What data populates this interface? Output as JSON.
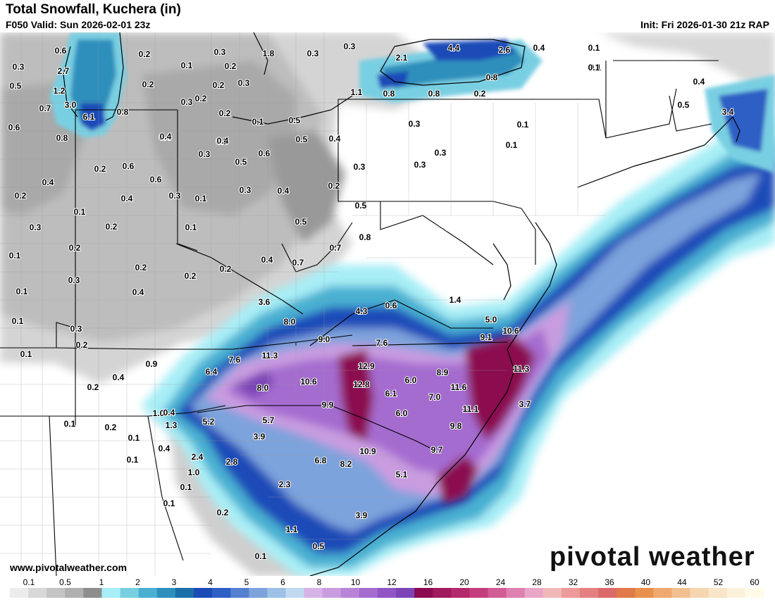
{
  "header": {
    "title": "Total Snowfall, Kuchera (in)",
    "valid": "F050 Valid: Sun 2026-02-01 23z",
    "init": "Init: Fri 2026-01-30 21z RAP"
  },
  "branding": {
    "logo_text": "pivotal weather",
    "website": "www.pivotalweather.com"
  },
  "legend": {
    "ticks": [
      "0.1",
      "0.5",
      "1",
      "2",
      "3",
      "4",
      "5",
      "6",
      "8",
      "10",
      "12",
      "16",
      "20",
      "24",
      "28",
      "32",
      "36",
      "40",
      "44",
      "52",
      "60"
    ],
    "colors": [
      "#ececec",
      "#d8d8d8",
      "#c4c4c4",
      "#b0b0b0",
      "#8e8e8e",
      "#a8eef6",
      "#79cfe2",
      "#4ab0d2",
      "#2e8fbc",
      "#1b6fa8",
      "#1c4bb8",
      "#2d5fc4",
      "#5380d0",
      "#7da3dc",
      "#9dc0e6",
      "#bfd9f0",
      "#d6b3e6",
      "#c99ce0",
      "#b884d8",
      "#a56cd0",
      "#9256c4",
      "#7c44b6",
      "#8b0a50",
      "#a01a5e",
      "#b4286c",
      "#c43e7e",
      "#d25c96",
      "#de80b0",
      "#e9a6c6",
      "#f0b8b8",
      "#ec9a9a",
      "#e48080",
      "#dc6a6a",
      "#e07a4a",
      "#e8904c",
      "#efa870",
      "#f2c090",
      "#f6d6b0",
      "#f9e6c8",
      "#fcf2dc",
      "#fffbe8"
    ]
  },
  "map_labels": [
    {
      "text": "0.6"
    },
    {
      "text": "0.3"
    },
    {
      "text": "2.7"
    },
    {
      "text": "0.5"
    },
    {
      "text": "1.2"
    },
    {
      "text": "0.7"
    },
    {
      "text": "3.0"
    },
    {
      "text": "6.1"
    },
    {
      "text": "0.6"
    },
    {
      "text": "0.8"
    },
    {
      "text": "0.2"
    },
    {
      "text": "0.1"
    },
    {
      "text": "0.2"
    },
    {
      "text": "0.3"
    },
    {
      "text": "0.2"
    },
    {
      "text": "0.2"
    },
    {
      "text": "0.8"
    },
    {
      "text": "0.3"
    },
    {
      "text": "1.8"
    },
    {
      "text": "0.3"
    },
    {
      "text": "0.3"
    },
    {
      "text": "2.1"
    },
    {
      "text": "4.4"
    },
    {
      "text": "2.6"
    },
    {
      "text": "0.4"
    },
    {
      "text": "0.1"
    },
    {
      "text": "0.1"
    },
    {
      "text": "0.8"
    },
    {
      "text": "1.1"
    },
    {
      "text": "0.8"
    },
    {
      "text": "0.5"
    },
    {
      "text": "0.2"
    },
    {
      "text": "0.8"
    },
    {
      "text": "0.3"
    },
    {
      "text": "0.2"
    },
    {
      "text": "0.4"
    },
    {
      "text": "0.5"
    },
    {
      "text": "0.5"
    },
    {
      "text": "0.4"
    },
    {
      "text": "0.3"
    },
    {
      "text": "0.1"
    },
    {
      "text": "0.1"
    },
    {
      "text": "0.1"
    },
    {
      "text": "0.2"
    },
    {
      "text": "0.4"
    },
    {
      "text": "0.4"
    },
    {
      "text": "0.5"
    },
    {
      "text": "0.6"
    },
    {
      "text": "0.3"
    },
    {
      "text": "0.2"
    },
    {
      "text": "0.6"
    },
    {
      "text": "0.4"
    },
    {
      "text": "0.2"
    },
    {
      "text": "0.6"
    },
    {
      "text": "0.3"
    },
    {
      "text": "0.4"
    },
    {
      "text": "0.3"
    },
    {
      "text": "0.1"
    },
    {
      "text": "0.4"
    },
    {
      "text": "0.5"
    },
    {
      "text": "0.3"
    },
    {
      "text": "0.2"
    },
    {
      "text": "0.1"
    },
    {
      "text": "0.5"
    },
    {
      "text": "0.7"
    },
    {
      "text": "0.8"
    },
    {
      "text": "0.1"
    },
    {
      "text": "0.2"
    },
    {
      "text": "0.2"
    },
    {
      "text": "0.2"
    },
    {
      "text": "0.4"
    },
    {
      "text": "0.7"
    },
    {
      "text": "0.1"
    },
    {
      "text": "0.3"
    },
    {
      "text": "0.4"
    },
    {
      "text": "0.3"
    },
    {
      "text": "0.2"
    },
    {
      "text": "0.3"
    },
    {
      "text": "0.3"
    },
    {
      "text": "0.2"
    },
    {
      "text": "0.1"
    },
    {
      "text": "0.1"
    },
    {
      "text": "0.3"
    },
    {
      "text": "0.1"
    },
    {
      "text": "0.2"
    },
    {
      "text": "3.6"
    },
    {
      "text": "4.3"
    },
    {
      "text": "0.6"
    },
    {
      "text": "1.4"
    },
    {
      "text": "5.0"
    },
    {
      "text": "10.6"
    },
    {
      "text": "9.1"
    },
    {
      "text": "8.0"
    },
    {
      "text": "9.0"
    },
    {
      "text": "7.6"
    },
    {
      "text": "7.6"
    },
    {
      "text": "11.3"
    },
    {
      "text": "6.4"
    },
    {
      "text": "12.9"
    },
    {
      "text": "8.9"
    },
    {
      "text": "11.3"
    },
    {
      "text": "10.6"
    },
    {
      "text": "12.8"
    },
    {
      "text": "6.0"
    },
    {
      "text": "8.0"
    },
    {
      "text": "11.6"
    },
    {
      "text": "6.1"
    },
    {
      "text": "7.0"
    },
    {
      "text": "9.9"
    },
    {
      "text": "6.0"
    },
    {
      "text": "11.1"
    },
    {
      "text": "3.7"
    },
    {
      "text": "0.9"
    },
    {
      "text": "0.4"
    },
    {
      "text": "0.3"
    },
    {
      "text": "0.2"
    },
    {
      "text": "1.0"
    },
    {
      "text": "5.2"
    },
    {
      "text": "5.7"
    },
    {
      "text": "1.3"
    },
    {
      "text": "3.9"
    },
    {
      "text": "9.8"
    },
    {
      "text": "10.9"
    },
    {
      "text": "9.7"
    },
    {
      "text": "0.4"
    },
    {
      "text": "2.4"
    },
    {
      "text": "2.8"
    },
    {
      "text": "6.8"
    },
    {
      "text": "8.2"
    },
    {
      "text": "5.1"
    },
    {
      "text": "1.0"
    },
    {
      "text": "0.1"
    },
    {
      "text": "2.3"
    },
    {
      "text": "0.1"
    },
    {
      "text": "0.1"
    },
    {
      "text": "0.1"
    },
    {
      "text": "0.2"
    },
    {
      "text": "3.9"
    },
    {
      "text": "1.1"
    },
    {
      "text": "0.5"
    },
    {
      "text": "0.1"
    },
    {
      "text": "0.2"
    },
    {
      "text": "0.3"
    },
    {
      "text": "0.1"
    },
    {
      "text": "0.4"
    },
    {
      "text": "0.2"
    },
    {
      "text": "0.5"
    },
    {
      "text": "3.4"
    },
    {
      "text": "0.4"
    },
    {
      "text": "0.1"
    }
  ]
}
